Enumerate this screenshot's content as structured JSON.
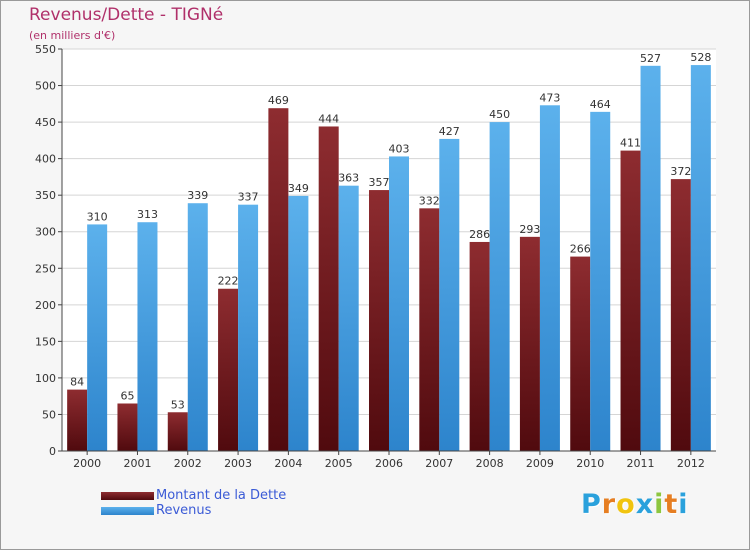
{
  "header": {
    "title": "Revenus/Dette - TIGNé",
    "subtitle": "(en milliers d'€)"
  },
  "legend": {
    "debt_label": "Montant de la Dette",
    "revenue_label": "Revenus"
  },
  "logo": {
    "letters": [
      "P",
      "r",
      "o",
      "x",
      "i",
      "t",
      "i"
    ],
    "colors": [
      "#2aa1dc",
      "#e67e22",
      "#f1c40f",
      "#2aa1dc",
      "#8dc63f",
      "#e67e22",
      "#2aa1dc"
    ]
  },
  "colors": {
    "debt": "#6e1216",
    "revenue": "#3b97dd",
    "accent": "#b0306a"
  },
  "chart_data": {
    "type": "bar",
    "title": "Revenus/Dette - TIGNé",
    "subtitle": "(en milliers d'€)",
    "categories": [
      "2000",
      "2001",
      "2002",
      "2003",
      "2004",
      "2005",
      "2006",
      "2007",
      "2008",
      "2009",
      "2010",
      "2011",
      "2012"
    ],
    "series": [
      {
        "name": "Montant de la Dette",
        "values": [
          84,
          65,
          53,
          222,
          469,
          444,
          357,
          332,
          286,
          293,
          266,
          411,
          372
        ]
      },
      {
        "name": "Revenus",
        "values": [
          310,
          313,
          339,
          337,
          349,
          363,
          403,
          427,
          450,
          473,
          464,
          527,
          528
        ]
      }
    ],
    "ylim": [
      0,
      550
    ],
    "yticks": [
      0,
      50,
      100,
      150,
      200,
      250,
      300,
      350,
      400,
      450,
      500,
      550
    ],
    "grid": true,
    "legend_position": "bottom-left"
  }
}
